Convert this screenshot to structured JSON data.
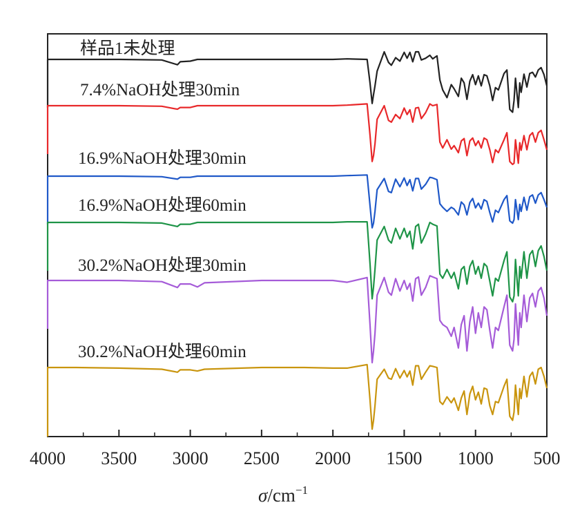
{
  "chart_data": {
    "type": "line",
    "title": "",
    "xlabel_symbol": "σ",
    "xlabel_unit": "/cm",
    "xlabel_exponent": "−1",
    "ylabel": "",
    "xlim": [
      4000,
      500
    ],
    "x_reversed": true,
    "x_ticks": [
      4000,
      3500,
      3000,
      2500,
      2000,
      1500,
      1000,
      500
    ],
    "x_tick_labels": [
      "4000",
      "3500",
      "3000",
      "2500",
      "2000",
      "1500",
      "1000",
      "500"
    ],
    "y_ticks_shown": false,
    "legend": "inline-labels",
    "grid": false,
    "series": [
      {
        "name": "样品1未处理",
        "color": "#222222",
        "x": [
          4000,
          3800,
          3500,
          3200,
          3090,
          3070,
          3000,
          2950,
          2900,
          2500,
          2200,
          2000,
          1900,
          1760,
          1740,
          1725,
          1715,
          1705,
          1690,
          1640,
          1610,
          1590,
          1560,
          1530,
          1500,
          1480,
          1460,
          1440,
          1420,
          1400,
          1380,
          1350,
          1320,
          1300,
          1270,
          1250,
          1230,
          1200,
          1170,
          1150,
          1120,
          1100,
          1080,
          1060,
          1040,
          1020,
          1000,
          980,
          960,
          940,
          920,
          900,
          880,
          860,
          840,
          800,
          780,
          760,
          740,
          730,
          720,
          700,
          690,
          680,
          660,
          640,
          620,
          600,
          580,
          560,
          540,
          520,
          500
        ],
        "y": [
          0.0,
          0.0,
          0.0,
          -0.1,
          -0.9,
          -0.4,
          -0.3,
          0.0,
          0.0,
          0.0,
          0.0,
          0.0,
          0.1,
          0.0,
          -4.0,
          -7.5,
          -6.0,
          -4.5,
          -2.0,
          1.3,
          -0.5,
          -1.0,
          0.3,
          -0.3,
          1.2,
          0.2,
          1.2,
          -0.4,
          1.3,
          1.3,
          -0.1,
          0.2,
          0.7,
          0.1,
          0.6,
          -3.5,
          -5.2,
          -6.5,
          -4.3,
          -5.0,
          -6.3,
          -3.2,
          -4.0,
          -6.8,
          -3.7,
          -2.6,
          -4.3,
          -2.8,
          -4.5,
          -2.6,
          -2.8,
          -4.5,
          -7.0,
          -4.8,
          -5.2,
          -2.4,
          -1.8,
          -8.5,
          -9.0,
          -7.0,
          -3.2,
          -8.2,
          -4.0,
          -5.6,
          -2.5,
          -4.7,
          -2.4,
          -2.2,
          -3.0,
          -1.8,
          -1.4,
          -2.6,
          -4.5
        ]
      },
      {
        "name": "7.4%NaOH处理30min",
        "color": "#e8282a",
        "x": [
          4000,
          3800,
          3500,
          3200,
          3090,
          3070,
          3000,
          2950,
          2900,
          2500,
          2200,
          2000,
          1900,
          1760,
          1740,
          1725,
          1715,
          1705,
          1690,
          1640,
          1610,
          1590,
          1560,
          1530,
          1500,
          1480,
          1460,
          1440,
          1420,
          1400,
          1380,
          1350,
          1320,
          1300,
          1270,
          1250,
          1230,
          1200,
          1170,
          1150,
          1120,
          1100,
          1080,
          1060,
          1040,
          1020,
          1000,
          980,
          960,
          940,
          920,
          900,
          880,
          860,
          840,
          800,
          780,
          760,
          740,
          730,
          720,
          700,
          690,
          680,
          660,
          640,
          620,
          600,
          580,
          560,
          540,
          520,
          500
        ],
        "y": [
          0.0,
          0.0,
          0.0,
          -0.1,
          -0.6,
          -0.3,
          -0.3,
          0.0,
          0.0,
          0.0,
          0.0,
          0.0,
          0.1,
          0.3,
          -5.0,
          -9.5,
          -8.5,
          -6.5,
          -2.3,
          0.0,
          -2.5,
          -2.8,
          -1.5,
          -2.2,
          -0.4,
          -1.5,
          -0.7,
          -2.8,
          -0.4,
          -0.3,
          -2.2,
          -1.2,
          0.3,
          0.0,
          0.2,
          -6.2,
          -7.2,
          -5.8,
          -7.4,
          -6.8,
          -8.0,
          -6.0,
          -5.6,
          -8.5,
          -6.0,
          -5.5,
          -6.8,
          -6.0,
          -7.2,
          -5.5,
          -5.8,
          -7.5,
          -9.7,
          -7.5,
          -8.0,
          -5.8,
          -4.6,
          -9.5,
          -10.0,
          -9.8,
          -5.8,
          -9.8,
          -6.3,
          -7.6,
          -5.1,
          -7.5,
          -5.1,
          -4.6,
          -6.2,
          -4.6,
          -4.2,
          -5.8,
          -7.5
        ]
      },
      {
        "name": "16.9%NaOH处理30min",
        "color": "#1f58c8",
        "x": [
          4000,
          3800,
          3500,
          3200,
          3090,
          3070,
          3000,
          2950,
          2900,
          2500,
          2200,
          2000,
          1900,
          1760,
          1740,
          1725,
          1715,
          1705,
          1690,
          1640,
          1610,
          1590,
          1560,
          1530,
          1500,
          1480,
          1460,
          1440,
          1420,
          1400,
          1380,
          1350,
          1320,
          1300,
          1270,
          1250,
          1230,
          1200,
          1170,
          1150,
          1120,
          1100,
          1080,
          1060,
          1040,
          1020,
          1000,
          980,
          960,
          940,
          920,
          900,
          880,
          860,
          840,
          800,
          780,
          760,
          740,
          730,
          720,
          700,
          690,
          680,
          660,
          640,
          620,
          600,
          580,
          560,
          540,
          520,
          500
        ],
        "y": [
          0.0,
          0.0,
          0.0,
          -0.1,
          -0.5,
          -0.2,
          -0.2,
          0.0,
          0.0,
          0.0,
          0.0,
          0.0,
          0.1,
          0.2,
          -5.0,
          -8.8,
          -8.0,
          -6.0,
          -2.3,
          -0.4,
          -2.6,
          -2.8,
          -0.5,
          -1.8,
          -0.3,
          -1.6,
          -0.6,
          -2.5,
          -0.4,
          -0.4,
          -2.2,
          -1.4,
          -0.2,
          -0.3,
          -0.6,
          -4.7,
          -5.3,
          -6.0,
          -5.3,
          -5.6,
          -6.6,
          -4.4,
          -4.9,
          -6.6,
          -4.5,
          -3.8,
          -5.4,
          -4.6,
          -5.6,
          -4.0,
          -4.3,
          -6.2,
          -7.8,
          -5.8,
          -6.2,
          -4.0,
          -3.3,
          -7.6,
          -8.0,
          -7.4,
          -4.0,
          -7.4,
          -4.8,
          -6.0,
          -3.6,
          -5.8,
          -3.5,
          -3.2,
          -4.6,
          -3.2,
          -2.8,
          -4.0,
          -5.3
        ]
      },
      {
        "name": "16.9%NaOH处理60min",
        "color": "#1e9447",
        "x": [
          4000,
          3800,
          3500,
          3200,
          3090,
          3070,
          3000,
          2950,
          2900,
          2500,
          2200,
          2000,
          1900,
          1760,
          1740,
          1725,
          1715,
          1705,
          1690,
          1640,
          1610,
          1590,
          1560,
          1530,
          1500,
          1480,
          1460,
          1440,
          1420,
          1400,
          1380,
          1350,
          1320,
          1300,
          1270,
          1250,
          1230,
          1200,
          1170,
          1150,
          1120,
          1100,
          1080,
          1060,
          1040,
          1020,
          1000,
          980,
          960,
          940,
          920,
          900,
          880,
          860,
          840,
          800,
          780,
          760,
          740,
          730,
          720,
          700,
          690,
          680,
          660,
          640,
          620,
          600,
          580,
          560,
          540,
          520,
          500
        ],
        "y": [
          0.0,
          0.0,
          0.0,
          -0.1,
          -0.7,
          -0.3,
          -0.3,
          0.0,
          0.0,
          0.0,
          0.0,
          0.0,
          0.1,
          0.1,
          -7.0,
          -13.0,
          -11.0,
          -8.0,
          -3.0,
          -0.7,
          -3.0,
          -3.5,
          -1.0,
          -2.8,
          -1.0,
          -2.5,
          -1.5,
          -4.5,
          -0.7,
          -0.3,
          -3.5,
          -2.0,
          0.0,
          -0.3,
          -0.6,
          -8.8,
          -9.5,
          -8.0,
          -9.5,
          -8.5,
          -11.3,
          -8.0,
          -7.5,
          -10.5,
          -7.5,
          -6.5,
          -8.8,
          -7.5,
          -9.5,
          -7.0,
          -7.5,
          -10.0,
          -12.5,
          -9.5,
          -10.0,
          -6.5,
          -5.0,
          -12.7,
          -13.5,
          -12.5,
          -6.3,
          -12.5,
          -7.5,
          -9.5,
          -5.0,
          -9.5,
          -5.5,
          -4.8,
          -7.5,
          -4.8,
          -4.0,
          -5.8,
          -8.2
        ]
      },
      {
        "name": "30.2%NaOH处理30min",
        "color": "#a55bd8",
        "x": [
          4000,
          3800,
          3500,
          3200,
          3090,
          3070,
          3000,
          2950,
          2900,
          2500,
          2200,
          2000,
          1900,
          1760,
          1740,
          1725,
          1715,
          1705,
          1690,
          1640,
          1610,
          1590,
          1560,
          1530,
          1500,
          1480,
          1460,
          1440,
          1420,
          1400,
          1380,
          1350,
          1320,
          1300,
          1270,
          1250,
          1230,
          1200,
          1170,
          1150,
          1120,
          1100,
          1080,
          1060,
          1040,
          1020,
          1000,
          980,
          960,
          940,
          920,
          900,
          880,
          860,
          840,
          800,
          780,
          760,
          740,
          730,
          720,
          700,
          690,
          680,
          660,
          640,
          620,
          600,
          580,
          560,
          540,
          520,
          500
        ],
        "y": [
          0.0,
          0.0,
          0.0,
          -0.2,
          -1.2,
          -0.6,
          -0.6,
          -1.1,
          -0.4,
          0.0,
          0.0,
          0.0,
          -0.3,
          0.5,
          -7.5,
          -14.0,
          -12.0,
          -9.0,
          -2.5,
          0.5,
          -2.0,
          -2.5,
          0.3,
          -1.8,
          0.0,
          -1.5,
          -0.5,
          -3.5,
          0.3,
          0.6,
          -2.5,
          -1.2,
          0.8,
          0.6,
          0.3,
          -6.8,
          -7.5,
          -8.0,
          -9.5,
          -8.0,
          -11.5,
          -7.5,
          -6.0,
          -12.0,
          -7.0,
          -4.5,
          -9.0,
          -5.5,
          -8.0,
          -4.5,
          -5.0,
          -8.5,
          -11.5,
          -8.0,
          -8.5,
          -4.5,
          -2.5,
          -11.0,
          -12.0,
          -10.0,
          -4.0,
          -11.0,
          -5.5,
          -8.0,
          -2.5,
          -7.0,
          -3.0,
          -2.2,
          -4.5,
          -1.8,
          -1.2,
          -3.0,
          -6.0
        ]
      },
      {
        "name": "30.2%NaOH处理60min",
        "color": "#c9950e",
        "x": [
          4000,
          3800,
          3500,
          3200,
          3090,
          3070,
          3000,
          2950,
          2900,
          2500,
          2200,
          2000,
          1900,
          1760,
          1740,
          1725,
          1715,
          1705,
          1690,
          1640,
          1610,
          1590,
          1560,
          1530,
          1500,
          1480,
          1460,
          1440,
          1420,
          1400,
          1380,
          1350,
          1320,
          1300,
          1270,
          1250,
          1230,
          1200,
          1170,
          1150,
          1120,
          1100,
          1080,
          1060,
          1040,
          1020,
          1000,
          980,
          960,
          940,
          920,
          900,
          880,
          860,
          840,
          800,
          780,
          760,
          740,
          730,
          720,
          700,
          690,
          680,
          660,
          640,
          620,
          600,
          580,
          560,
          540,
          520,
          500
        ],
        "y": [
          0.0,
          0.0,
          -0.1,
          -0.3,
          -0.8,
          -0.4,
          -0.4,
          -0.6,
          -0.3,
          0.0,
          0.0,
          -0.1,
          -0.1,
          0.5,
          -5.5,
          -10.5,
          -9.0,
          -6.5,
          -2.0,
          -0.3,
          -1.8,
          -2.0,
          -0.2,
          -1.8,
          -0.5,
          -1.6,
          -0.6,
          -3.0,
          0.3,
          0.3,
          -2.0,
          -0.8,
          0.3,
          0.2,
          0.0,
          -5.8,
          -6.3,
          -5.0,
          -6.0,
          -5.2,
          -7.3,
          -5.2,
          -4.0,
          -8.0,
          -4.5,
          -3.2,
          -5.5,
          -4.2,
          -6.2,
          -3.5,
          -3.7,
          -6.5,
          -8.0,
          -5.8,
          -6.0,
          -3.2,
          -2.0,
          -8.3,
          -9.0,
          -7.6,
          -3.0,
          -8.0,
          -3.6,
          -5.3,
          -1.5,
          -5.0,
          -1.5,
          -0.8,
          -2.8,
          -0.3,
          0.0,
          -1.5,
          -3.5
        ]
      }
    ]
  }
}
